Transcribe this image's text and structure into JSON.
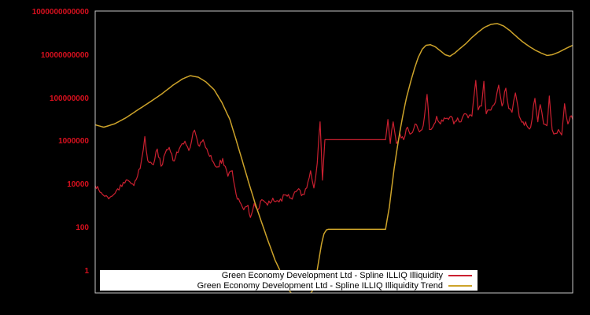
{
  "figure": {
    "background": "#000000",
    "plot_border_color": "#c6c6c6",
    "tick_label_color": "#d8101e"
  },
  "legend": {
    "background": "#ffffff",
    "items": [
      {
        "label": "Green Economy Development Ltd - Spline ILLIQ Illiquidity",
        "color": "#cb2030"
      },
      {
        "label": "Green Economy Development Ltd - Spline ILLIQ Illiquidity Trend",
        "color": "#cda32a"
      }
    ]
  },
  "chart_data": {
    "type": "line",
    "title": "",
    "xlabel": "",
    "ylabel": "",
    "yscale": "log",
    "ylim": [
      0.1,
      1200000000000
    ],
    "grid": false,
    "legend_position": "bottom-center-inside",
    "yticks": [
      {
        "label": "1",
        "value": 1
      },
      {
        "label": "100",
        "value": 100
      },
      {
        "label": "10000",
        "value": 10000
      },
      {
        "label": "1000000",
        "value": 1000000
      },
      {
        "label": "100000000",
        "value": 100000000
      },
      {
        "label": "10000000000",
        "value": 10000000000
      },
      {
        "label": "1000000000000",
        "value": 1000000000000
      }
    ],
    "series": [
      {
        "name": "Green Economy Development Ltd - Spline ILLIQ Illiquidity",
        "color": "#cb2030",
        "width": 1.2,
        "noise_log10": 0.13,
        "points_log10": [
          [
            0.0,
            3.98
          ],
          [
            0.015,
            3.58
          ],
          [
            0.031,
            3.44
          ],
          [
            0.044,
            3.73
          ],
          [
            0.056,
            3.94
          ],
          [
            0.068,
            4.23
          ],
          [
            0.081,
            3.98
          ],
          [
            0.094,
            4.77
          ],
          [
            0.104,
            6.26
          ],
          [
            0.11,
            5.14
          ],
          [
            0.122,
            4.95
          ],
          [
            0.13,
            5.68
          ],
          [
            0.138,
            4.88
          ],
          [
            0.147,
            5.5
          ],
          [
            0.155,
            5.75
          ],
          [
            0.163,
            5.14
          ],
          [
            0.176,
            5.68
          ],
          [
            0.188,
            6.04
          ],
          [
            0.196,
            5.61
          ],
          [
            0.208,
            6.55
          ],
          [
            0.216,
            5.86
          ],
          [
            0.226,
            6.11
          ],
          [
            0.234,
            5.68
          ],
          [
            0.245,
            5.14
          ],
          [
            0.257,
            4.85
          ],
          [
            0.267,
            5.24
          ],
          [
            0.278,
            4.41
          ],
          [
            0.287,
            4.67
          ],
          [
            0.295,
            3.58
          ],
          [
            0.303,
            3.22
          ],
          [
            0.311,
            2.86
          ],
          [
            0.32,
            3.07
          ],
          [
            0.325,
            2.5
          ],
          [
            0.333,
            3.15
          ],
          [
            0.341,
            2.86
          ],
          [
            0.349,
            3.33
          ],
          [
            0.361,
            3.07
          ],
          [
            0.372,
            3.4
          ],
          [
            0.385,
            3.22
          ],
          [
            0.397,
            3.54
          ],
          [
            0.41,
            3.4
          ],
          [
            0.423,
            3.76
          ],
          [
            0.435,
            3.58
          ],
          [
            0.443,
            3.87
          ],
          [
            0.451,
            4.67
          ],
          [
            0.458,
            3.87
          ],
          [
            0.465,
            5.03
          ],
          [
            0.471,
            6.94
          ],
          [
            0.476,
            4.23
          ],
          [
            0.481,
            6.11
          ],
          [
            0.486,
            6.11
          ],
          [
            0.608,
            6.11
          ],
          [
            0.613,
            7.05
          ],
          [
            0.618,
            5.93
          ],
          [
            0.624,
            6.94
          ],
          [
            0.631,
            5.93
          ],
          [
            0.638,
            6.4
          ],
          [
            0.646,
            6.11
          ],
          [
            0.654,
            6.69
          ],
          [
            0.662,
            6.4
          ],
          [
            0.67,
            6.84
          ],
          [
            0.679,
            6.47
          ],
          [
            0.687,
            6.76
          ],
          [
            0.695,
            8.21
          ],
          [
            0.7,
            6.58
          ],
          [
            0.707,
            6.69
          ],
          [
            0.715,
            7.2
          ],
          [
            0.723,
            6.84
          ],
          [
            0.731,
            7.12
          ],
          [
            0.74,
            7.05
          ],
          [
            0.745,
            7.2
          ],
          [
            0.751,
            6.84
          ],
          [
            0.759,
            7.12
          ],
          [
            0.766,
            6.94
          ],
          [
            0.773,
            7.31
          ],
          [
            0.781,
            7.12
          ],
          [
            0.789,
            7.2
          ],
          [
            0.797,
            8.86
          ],
          [
            0.802,
            7.49
          ],
          [
            0.809,
            7.67
          ],
          [
            0.814,
            8.82
          ],
          [
            0.819,
            7.31
          ],
          [
            0.825,
            7.49
          ],
          [
            0.832,
            7.67
          ],
          [
            0.838,
            7.85
          ],
          [
            0.845,
            8.64
          ],
          [
            0.852,
            7.67
          ],
          [
            0.86,
            8.5
          ],
          [
            0.866,
            7.56
          ],
          [
            0.873,
            7.38
          ],
          [
            0.88,
            8.28
          ],
          [
            0.888,
            7.2
          ],
          [
            0.896,
            6.94
          ],
          [
            0.904,
            6.76
          ],
          [
            0.912,
            6.69
          ],
          [
            0.921,
            8.03
          ],
          [
            0.927,
            6.94
          ],
          [
            0.932,
            7.74
          ],
          [
            0.939,
            6.84
          ],
          [
            0.946,
            6.76
          ],
          [
            0.951,
            8.14
          ],
          [
            0.957,
            6.58
          ],
          [
            0.964,
            6.4
          ],
          [
            0.97,
            6.58
          ],
          [
            0.977,
            6.33
          ],
          [
            0.983,
            7.78
          ],
          [
            0.99,
            6.84
          ],
          [
            0.995,
            7.2
          ],
          [
            1.0,
            7.05
          ]
        ]
      },
      {
        "name": "Green Economy Development Ltd - Spline ILLIQ Illiquidity Trend",
        "color": "#cda32a",
        "width": 1.5,
        "noise_log10": 0,
        "points_log10": [
          [
            0.0,
            6.8
          ],
          [
            0.018,
            6.69
          ],
          [
            0.04,
            6.84
          ],
          [
            0.064,
            7.12
          ],
          [
            0.089,
            7.49
          ],
          [
            0.114,
            7.85
          ],
          [
            0.138,
            8.21
          ],
          [
            0.163,
            8.64
          ],
          [
            0.183,
            8.93
          ],
          [
            0.199,
            9.08
          ],
          [
            0.216,
            9.01
          ],
          [
            0.232,
            8.79
          ],
          [
            0.249,
            8.43
          ],
          [
            0.265,
            7.85
          ],
          [
            0.282,
            7.05
          ],
          [
            0.295,
            6.11
          ],
          [
            0.308,
            5.14
          ],
          [
            0.321,
            4.16
          ],
          [
            0.334,
            3.22
          ],
          [
            0.348,
            2.31
          ],
          [
            0.361,
            1.48
          ],
          [
            0.377,
            0.51
          ],
          [
            0.394,
            -0.29
          ],
          [
            0.407,
            -0.9
          ],
          [
            0.418,
            -1.23
          ],
          [
            0.432,
            -1.37
          ],
          [
            0.445,
            -1.19
          ],
          [
            0.455,
            -0.9
          ],
          [
            0.463,
            -0.18
          ],
          [
            0.469,
            0.61
          ],
          [
            0.474,
            1.27
          ],
          [
            0.479,
            1.74
          ],
          [
            0.484,
            1.92
          ],
          [
            0.488,
            1.95
          ],
          [
            0.608,
            1.95
          ],
          [
            0.611,
            2.35
          ],
          [
            0.616,
            2.97
          ],
          [
            0.621,
            3.87
          ],
          [
            0.626,
            4.77
          ],
          [
            0.631,
            5.5
          ],
          [
            0.638,
            6.47
          ],
          [
            0.644,
            7.2
          ],
          [
            0.652,
            8.07
          ],
          [
            0.661,
            8.82
          ],
          [
            0.669,
            9.44
          ],
          [
            0.677,
            9.95
          ],
          [
            0.685,
            10.31
          ],
          [
            0.693,
            10.49
          ],
          [
            0.702,
            10.52
          ],
          [
            0.712,
            10.42
          ],
          [
            0.723,
            10.23
          ],
          [
            0.733,
            10.05
          ],
          [
            0.743,
            9.98
          ],
          [
            0.753,
            10.13
          ],
          [
            0.764,
            10.34
          ],
          [
            0.776,
            10.56
          ],
          [
            0.789,
            10.85
          ],
          [
            0.802,
            11.1
          ],
          [
            0.815,
            11.32
          ],
          [
            0.829,
            11.46
          ],
          [
            0.842,
            11.5
          ],
          [
            0.855,
            11.39
          ],
          [
            0.868,
            11.18
          ],
          [
            0.881,
            10.92
          ],
          [
            0.894,
            10.67
          ],
          [
            0.908,
            10.45
          ],
          [
            0.921,
            10.27
          ],
          [
            0.934,
            10.13
          ],
          [
            0.946,
            10.02
          ],
          [
            0.957,
            10.05
          ],
          [
            0.97,
            10.16
          ],
          [
            0.983,
            10.31
          ],
          [
            0.993,
            10.42
          ],
          [
            1.0,
            10.49
          ]
        ]
      }
    ]
  }
}
